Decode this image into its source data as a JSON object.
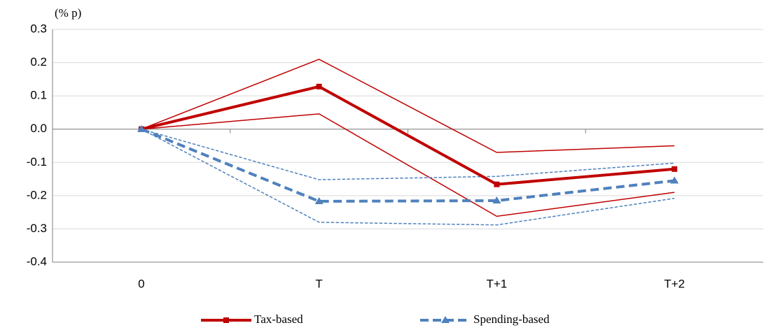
{
  "chart_data": {
    "type": "line",
    "y_unit": "(% p)",
    "categories": [
      "0",
      "T",
      "T+1",
      "T+2"
    ],
    "ylim": [
      -0.4,
      0.3
    ],
    "yticks": [
      -0.4,
      -0.3,
      -0.2,
      -0.1,
      {
        "value": 0,
        "label": "0.0"
      },
      0.1,
      0.2,
      0.3
    ],
    "grid": true,
    "legend": "bottom",
    "series": [
      {
        "name": "Tax-based",
        "color": "#c00000",
        "width": 4,
        "dash": false,
        "marker": "square",
        "values": [
          0,
          0.128,
          -0.166,
          -0.12
        ]
      },
      {
        "name": "Spending-based",
        "color": "#4f81bd",
        "width": 4,
        "dash": true,
        "marker": "triangle",
        "values": [
          0,
          -0.217,
          -0.215,
          -0.155
        ]
      }
    ],
    "bands": [
      {
        "color": "#c00000",
        "width": 1.5,
        "dash": false,
        "values": [
          0,
          0.21,
          -0.07,
          -0.05
        ]
      },
      {
        "color": "#c00000",
        "width": 1.5,
        "dash": false,
        "values": [
          0,
          0.046,
          -0.262,
          -0.19
        ]
      },
      {
        "color": "#4f81bd",
        "width": 1.5,
        "dash": true,
        "values": [
          0,
          -0.152,
          -0.142,
          -0.102
        ]
      },
      {
        "color": "#4f81bd",
        "width": 1.5,
        "dash": true,
        "values": [
          0,
          -0.28,
          -0.288,
          -0.208
        ]
      }
    ]
  }
}
